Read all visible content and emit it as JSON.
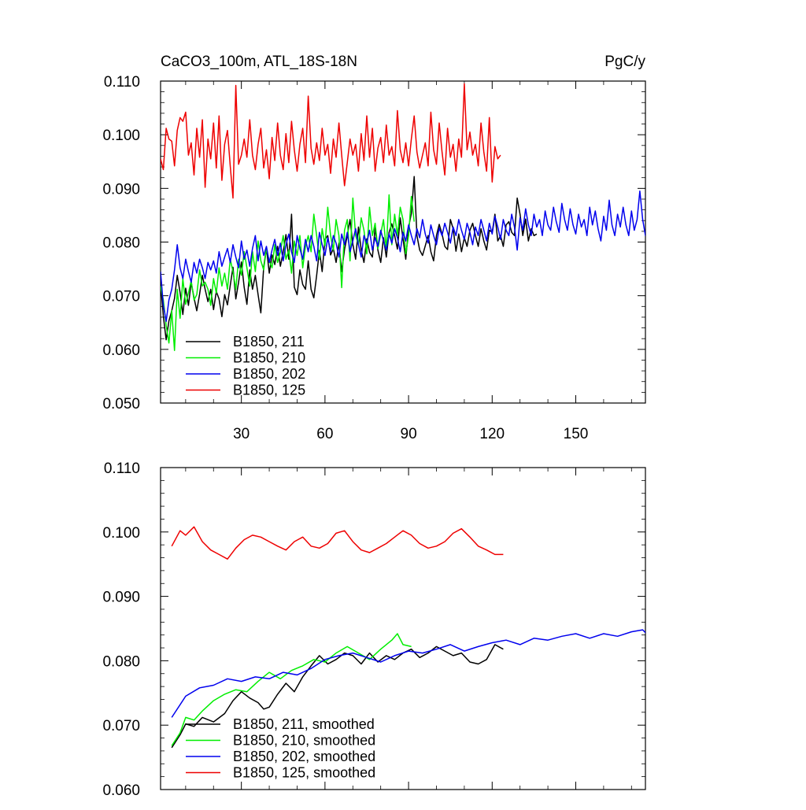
{
  "chart_data": [
    {
      "type": "line",
      "title": "CaCO3_100m, ATL_18S-18N",
      "units": "PgC/y",
      "xlabel": "",
      "ylabel": "",
      "xlim": [
        1,
        175
      ],
      "ylim": [
        0.05,
        0.11
      ],
      "xticks": [
        30,
        60,
        90,
        120,
        150
      ],
      "xtick_labels": [
        "30",
        "60",
        "90",
        "120",
        "150"
      ],
      "yticks": [
        0.05,
        0.06,
        0.07,
        0.08,
        0.09,
        0.1,
        0.11
      ],
      "ytick_labels": [
        "0.050",
        "0.060",
        "0.070",
        "0.080",
        "0.090",
        "0.100",
        "0.110"
      ],
      "grid": false,
      "legend_position": "bottom-left",
      "series": [
        {
          "name": "B1850, 211",
          "color": "#000000",
          "x_start": 1,
          "values": [
            0.0725,
            0.0662,
            0.0618,
            0.0653,
            0.0672,
            0.0695,
            0.0738,
            0.0706,
            0.0665,
            0.0714,
            0.0682,
            0.0725,
            0.0696,
            0.0672,
            0.0703,
            0.0738,
            0.0712,
            0.0689,
            0.0712,
            0.0674,
            0.0708,
            0.0694,
            0.0661,
            0.0702,
            0.0683,
            0.0719,
            0.0753,
            0.0694,
            0.0725,
            0.0763,
            0.0716,
            0.0684,
            0.0748,
            0.0712,
            0.0738,
            0.0702,
            0.0668,
            0.0753,
            0.0789,
            0.0742,
            0.0776,
            0.0758,
            0.0792,
            0.0755,
            0.0782,
            0.0814,
            0.0768,
            0.0852,
            0.0716,
            0.0702,
            0.0748,
            0.0721,
            0.0712,
            0.0765,
            0.0712,
            0.0696,
            0.0738,
            0.0784,
            0.0745,
            0.0805,
            0.0812,
            0.0776,
            0.0788,
            0.0762,
            0.0798,
            0.0745,
            0.0786,
            0.0812,
            0.0842,
            0.0796,
            0.0768,
            0.0828,
            0.0785,
            0.0762,
            0.0806,
            0.0781,
            0.0772,
            0.0826,
            0.0785,
            0.0762,
            0.0808,
            0.0772,
            0.0818,
            0.0834,
            0.0812,
            0.0787,
            0.0845,
            0.0806,
            0.0768,
            0.0828,
            0.0853,
            0.0922,
            0.0812,
            0.0785,
            0.0775,
            0.0793,
            0.0812,
            0.0782,
            0.0765,
            0.0812,
            0.0833,
            0.0815,
            0.0792,
            0.0786,
            0.0842,
            0.0825,
            0.0783,
            0.0815,
            0.0782,
            0.0808,
            0.0792,
            0.0822,
            0.0835,
            0.0812,
            0.0792,
            0.0825,
            0.0802,
            0.0785,
            0.0822,
            0.0818,
            0.0852,
            0.0802,
            0.0812,
            0.0792,
            0.0832,
            0.0838,
            0.0818,
            0.0812,
            0.0882,
            0.0852,
            0.0812,
            0.0843,
            0.0802,
            0.0825,
            0.0812,
            0.0815
          ]
        },
        {
          "name": "B1850, 210",
          "color": "#00ee00",
          "x_start": 1,
          "values": [
            0.0718,
            0.0692,
            0.0645,
            0.0612,
            0.0672,
            0.0598,
            0.0712,
            0.0658,
            0.0732,
            0.0684,
            0.0705,
            0.0728,
            0.0692,
            0.0702,
            0.0748,
            0.0718,
            0.0725,
            0.0712,
            0.0682,
            0.0732,
            0.0705,
            0.0752,
            0.0718,
            0.0742,
            0.0712,
            0.0768,
            0.0745,
            0.0712,
            0.0768,
            0.0738,
            0.0782,
            0.0752,
            0.0718,
            0.0782,
            0.0745,
            0.0802,
            0.0765,
            0.0748,
            0.0788,
            0.0765,
            0.0752,
            0.0795,
            0.0762,
            0.0782,
            0.0812,
            0.0768,
            0.0785,
            0.0742,
            0.0802,
            0.0775,
            0.0812,
            0.0752,
            0.0792,
            0.0812,
            0.0782,
            0.0852,
            0.0812,
            0.0768,
            0.0825,
            0.0793,
            0.0865,
            0.0812,
            0.0785,
            0.0842,
            0.0812,
            0.0715,
            0.0822,
            0.0842,
            0.0765,
            0.0882,
            0.0812,
            0.0795,
            0.0845,
            0.0822,
            0.0778,
            0.0865,
            0.0812,
            0.0835,
            0.0788,
            0.0815,
            0.0842,
            0.0785,
            0.0888,
            0.0795,
            0.0852,
            0.0812,
            0.0865,
            0.0842,
            0.0778,
            0.0812,
            0.0885,
            0.0838
          ]
        },
        {
          "name": "B1850, 202",
          "color": "#0000ee",
          "x_start": 1,
          "values": [
            0.0745,
            0.0682,
            0.0652,
            0.0692,
            0.0712,
            0.0748,
            0.0795,
            0.0752,
            0.0732,
            0.0768,
            0.0745,
            0.0725,
            0.0762,
            0.0742,
            0.0768,
            0.0752,
            0.0732,
            0.0762,
            0.0748,
            0.0765,
            0.0742,
            0.0782,
            0.0755,
            0.0772,
            0.0788,
            0.0762,
            0.0795,
            0.0772,
            0.0752,
            0.0802,
            0.0768,
            0.0785,
            0.0755,
            0.0788,
            0.0812,
            0.0765,
            0.0802,
            0.0775,
            0.0792,
            0.0762,
            0.0785,
            0.0805,
            0.0775,
            0.0798,
            0.0765,
            0.0795,
            0.0815,
            0.0782,
            0.0762,
            0.0812,
            0.0788,
            0.0768,
            0.0805,
            0.0782,
            0.0812,
            0.0792,
            0.0765,
            0.0818,
            0.0795,
            0.0775,
            0.0808,
            0.0782,
            0.0812,
            0.0798,
            0.0772,
            0.0815,
            0.0795,
            0.0818,
            0.0782,
            0.0802,
            0.0825,
            0.0795,
            0.0772,
            0.0812,
            0.0798,
            0.0822,
            0.0785,
            0.0808,
            0.0792,
            0.0822,
            0.0802,
            0.0785,
            0.0815,
            0.0798,
            0.0825,
            0.0808,
            0.0782,
            0.0818,
            0.0802,
            0.0832,
            0.0812,
            0.0795,
            0.0825,
            0.0808,
            0.0842,
            0.0815,
            0.0798,
            0.0832,
            0.0812,
            0.0795,
            0.0826,
            0.0812,
            0.0835,
            0.0818,
            0.0798,
            0.0828,
            0.0812,
            0.0842,
            0.0822,
            0.0805,
            0.0835,
            0.0818,
            0.0795,
            0.0828,
            0.0812,
            0.0842,
            0.0822,
            0.0802,
            0.0835,
            0.0815,
            0.0848,
            0.0828,
            0.0805,
            0.0842,
            0.0822,
            0.0812,
            0.0852,
            0.0828,
            0.0785,
            0.0845,
            0.0822,
            0.0862,
            0.0832,
            0.0812,
            0.0852,
            0.0828,
            0.0842,
            0.0812,
            0.0858,
            0.0832,
            0.0822,
            0.0865,
            0.0838,
            0.0818,
            0.0872,
            0.0842,
            0.0822,
            0.0862,
            0.0832,
            0.0815,
            0.0852,
            0.0828,
            0.0842,
            0.0812,
            0.0865,
            0.0832,
            0.0858,
            0.0825,
            0.0802,
            0.0848,
            0.0822,
            0.0878,
            0.0832,
            0.0812,
            0.0852,
            0.0828,
            0.0865,
            0.0832,
            0.0812,
            0.0858,
            0.0822,
            0.0842,
            0.0895,
            0.0842,
            0.0812,
            0.0858,
            0.0832,
            0.0812,
            0.0862,
            0.0852,
            0.0775,
            0.0822,
            0.0835
          ]
        },
        {
          "name": "B1850, 125",
          "color": "#ee0000",
          "x_start": 1,
          "values": [
            0.0955,
            0.0935,
            0.1012,
            0.0992,
            0.0988,
            0.0942,
            0.1008,
            0.1032,
            0.1025,
            0.1042,
            0.0962,
            0.0985,
            0.0925,
            0.1012,
            0.0958,
            0.1028,
            0.0902,
            0.0992,
            0.0955,
            0.1022,
            0.0938,
            0.1035,
            0.0915,
            0.0982,
            0.1008,
            0.0942,
            0.0882,
            0.1092,
            0.0945,
            0.0962,
            0.0992,
            0.0958,
            0.1028,
            0.0962,
            0.0935,
            0.0982,
            0.1012,
            0.0938,
            0.0972,
            0.0918,
            0.0995,
            0.0952,
            0.1022,
            0.0962,
            0.0935,
            0.1002,
            0.0948,
            0.1025,
            0.0972,
            0.0932,
            0.0982,
            0.1012,
            0.0948,
            0.1072,
            0.0975,
            0.0945,
            0.0985,
            0.0952,
            0.1012,
            0.0962,
            0.0982,
            0.0928,
            0.0992,
            0.0958,
            0.1022,
            0.0962,
            0.0905,
            0.0948,
            0.0992,
            0.0962,
            0.0982,
            0.0932,
            0.1002,
            0.0952,
            0.1035,
            0.0958,
            0.1012,
            0.0932,
            0.0975,
            0.0995,
            0.0948,
            0.1018,
            0.0962,
            0.0978,
            0.0942,
            0.1045,
            0.0972,
            0.0948,
            0.0985,
            0.0942,
            0.0992,
            0.1035,
            0.0968,
            0.0938,
            0.0962,
            0.0985,
            0.0942,
            0.1042,
            0.0972,
            0.0945,
            0.1022,
            0.0968,
            0.0925,
            0.1012,
            0.0958,
            0.0982,
            0.0932,
            0.0992,
            0.0958,
            0.1095,
            0.0972,
            0.1005,
            0.0962,
            0.0982,
            0.0942,
            0.1022,
            0.0968,
            0.0932,
            0.1032,
            0.0912,
            0.0978,
            0.0955,
            0.0962
          ]
        }
      ]
    },
    {
      "type": "line",
      "title": "",
      "xlabel": "",
      "ylabel": "",
      "xlim": [
        1,
        175
      ],
      "ylim": [
        0.06,
        0.11
      ],
      "xticks": [
        30,
        60,
        90,
        120,
        150
      ],
      "xtick_labels": [],
      "yticks": [
        0.06,
        0.07,
        0.08,
        0.09,
        0.1,
        0.11
      ],
      "ytick_labels": [
        "0.060",
        "0.070",
        "0.080",
        "0.090",
        "0.100",
        "0.110"
      ],
      "grid": false,
      "legend_position": "bottom-left",
      "series": [
        {
          "name": "B1850, 211, smoothed",
          "color": "#000000",
          "x": [
            5,
            8,
            10,
            13,
            16,
            20,
            24,
            27,
            30,
            33,
            36,
            38,
            40,
            43,
            46,
            49,
            52,
            55,
            58,
            61,
            64,
            67,
            70,
            73,
            76,
            79,
            82,
            85,
            88,
            91,
            94,
            97,
            100,
            103,
            106,
            109,
            112,
            115,
            118,
            121,
            124
          ],
          "values": [
            0.0665,
            0.0685,
            0.0702,
            0.0698,
            0.0712,
            0.0705,
            0.0718,
            0.0738,
            0.0752,
            0.0742,
            0.0735,
            0.0725,
            0.0728,
            0.0748,
            0.0765,
            0.0752,
            0.0775,
            0.0792,
            0.0808,
            0.0795,
            0.0802,
            0.0812,
            0.0808,
            0.0795,
            0.0812,
            0.0798,
            0.0808,
            0.0802,
            0.0812,
            0.0818,
            0.0805,
            0.0812,
            0.0822,
            0.0815,
            0.0808,
            0.0812,
            0.0798,
            0.0795,
            0.0802,
            0.0825,
            0.0818
          ]
        },
        {
          "name": "B1850, 210, smoothed",
          "color": "#00ee00",
          "x": [
            5,
            8,
            10,
            13,
            16,
            20,
            24,
            28,
            32,
            36,
            40,
            44,
            48,
            52,
            56,
            60,
            64,
            68,
            72,
            76,
            80,
            84,
            86,
            88,
            91
          ],
          "values": [
            0.0668,
            0.0688,
            0.0712,
            0.0708,
            0.0722,
            0.0738,
            0.0748,
            0.0755,
            0.0752,
            0.0768,
            0.0782,
            0.0772,
            0.0785,
            0.0792,
            0.0802,
            0.0798,
            0.0812,
            0.0822,
            0.0812,
            0.0802,
            0.0818,
            0.0832,
            0.0842,
            0.0825,
            0.0822
          ]
        },
        {
          "name": "B1850, 202, smoothed",
          "color": "#0000ee",
          "x": [
            5,
            10,
            15,
            20,
            25,
            30,
            35,
            40,
            45,
            50,
            55,
            60,
            65,
            70,
            75,
            80,
            85,
            90,
            95,
            100,
            105,
            110,
            115,
            120,
            125,
            130,
            135,
            140,
            145,
            150,
            155,
            160,
            165,
            170,
            174,
            177
          ],
          "values": [
            0.0712,
            0.0745,
            0.0758,
            0.0762,
            0.0772,
            0.0768,
            0.0775,
            0.0772,
            0.0782,
            0.0778,
            0.0788,
            0.0802,
            0.0808,
            0.0812,
            0.0805,
            0.0798,
            0.0808,
            0.0815,
            0.0812,
            0.0818,
            0.0825,
            0.0815,
            0.0822,
            0.0828,
            0.0832,
            0.0825,
            0.0835,
            0.0832,
            0.0838,
            0.0842,
            0.0835,
            0.0842,
            0.0838,
            0.0845,
            0.0848,
            0.0835
          ]
        },
        {
          "name": "B1850, 125, smoothed",
          "color": "#ee0000",
          "x": [
            5,
            8,
            10,
            13,
            16,
            19,
            22,
            25,
            28,
            31,
            34,
            37,
            40,
            43,
            46,
            49,
            52,
            55,
            58,
            61,
            64,
            67,
            70,
            73,
            76,
            79,
            82,
            85,
            88,
            91,
            94,
            97,
            100,
            103,
            106,
            109,
            112,
            115,
            118,
            121,
            124
          ],
          "values": [
            0.0978,
            0.1002,
            0.0995,
            0.1008,
            0.0985,
            0.0972,
            0.0965,
            0.0958,
            0.0975,
            0.0988,
            0.0995,
            0.0992,
            0.0985,
            0.0978,
            0.0972,
            0.0985,
            0.0992,
            0.0978,
            0.0975,
            0.0982,
            0.0998,
            0.1002,
            0.0985,
            0.0972,
            0.0968,
            0.0975,
            0.0982,
            0.0992,
            0.1002,
            0.0995,
            0.0982,
            0.0975,
            0.0978,
            0.0985,
            0.0998,
            0.1005,
            0.0992,
            0.0978,
            0.0972,
            0.0965,
            0.0965
          ]
        }
      ]
    }
  ]
}
